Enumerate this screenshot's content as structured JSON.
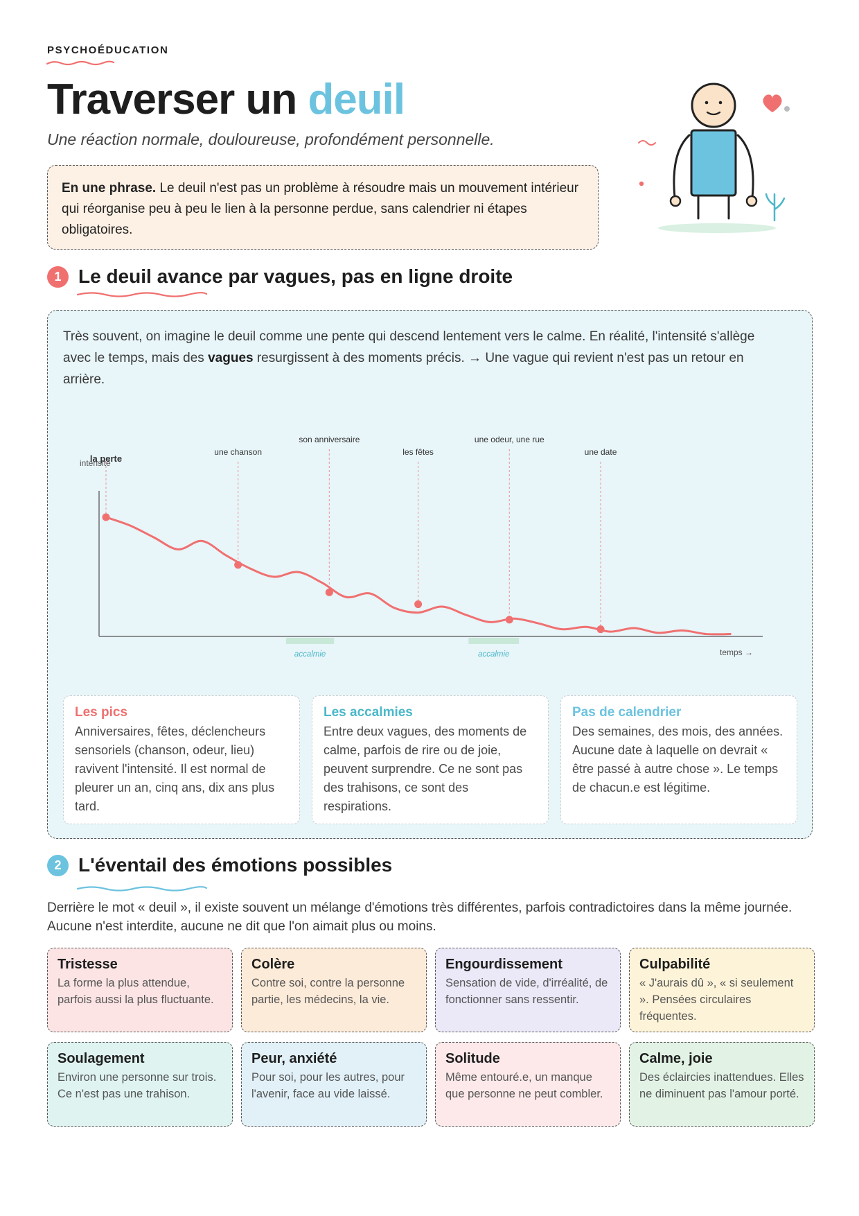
{
  "header": {
    "eyebrow": "PSYCHOÉDUCATION",
    "title_main": "Traverser un ",
    "title_accent": "deuil",
    "subtitle": "Une réaction normale, douloureuse, profondément personnelle.",
    "summary_lead": "En une phrase.",
    "summary_text": " Le deuil n'est pas un problème à résoudre mais un mouvement intérieur qui réorganise peu à peu le lien à la personne perdue, sans calendrier ni étapes obligatoires."
  },
  "colors": {
    "accent_blue": "#6cc3df",
    "accent_red": "#f07070",
    "teal_text": "#4bb8c9",
    "box_blue": "#e8f5f9",
    "summary_bg": "#fdf0e4"
  },
  "section1": {
    "number": "1",
    "title": "Le deuil avance par vagues, pas en ligne droite",
    "intro_a": "Très souvent, on imagine le deuil comme une pente qui descend lentement vers le calme. En réalité, l'intensité s'allège avec le temps, mais des ",
    "intro_bold": "vagues",
    "intro_b": " resurgissent à des moments précis. → Une vague qui revient n'est pas un retour en arrière.",
    "cards": [
      {
        "title": "Les pics",
        "text": "Anniversaires, fêtes, déclencheurs sensoriels (chanson, odeur, lieu) ravivent l'intensité. Il est normal de pleurer un an, cinq ans, dix ans plus tard.",
        "color": "#f07070"
      },
      {
        "title": "Les accalmies",
        "text": "Entre deux vagues, des moments de calme, parfois de rire ou de joie, peuvent surprendre. Ce ne sont pas des trahisons, ce sont des respirations.",
        "color": "#4bb8c9"
      },
      {
        "title": "Pas de calendrier",
        "text": "Des semaines, des mois, des années. Aucune date à laquelle on devrait « être passé à autre chose ». Le temps de chacun.e est légitime.",
        "color": "#6cc3df"
      }
    ]
  },
  "chart_data": {
    "type": "line",
    "ylabel": "intensité",
    "xlabel": "temps →",
    "x": [
      0,
      1,
      2,
      3,
      4,
      5,
      6,
      7,
      8,
      9,
      10,
      11,
      12,
      13,
      14,
      15,
      16,
      17,
      18,
      19,
      20,
      21,
      22,
      23,
      24,
      25,
      26
    ],
    "series": [
      {
        "values": [
          100,
          93,
          83,
          73,
          80,
          68,
          57,
          50,
          54,
          45,
          33,
          36,
          24,
          20,
          25,
          18,
          12,
          15,
          11,
          6,
          8,
          4,
          7,
          3,
          5,
          2,
          2
        ]
      }
    ],
    "events": [
      {
        "label": "la perte",
        "x": 0,
        "y": 100,
        "emphasis": true
      },
      {
        "label": "une chanson",
        "x": 5.5,
        "y": 60
      },
      {
        "label": "son anniversaire",
        "x": 9.3,
        "y": 37
      },
      {
        "label": "les fêtes",
        "x": 13,
        "y": 27
      },
      {
        "label": "une odeur, une rue",
        "x": 16.8,
        "y": 14
      },
      {
        "label": "une date",
        "x": 20.6,
        "y": 6
      }
    ],
    "calm_periods": [
      {
        "label": "accalmie",
        "from": 7.5,
        "to": 9.5
      },
      {
        "label": "accalmie",
        "from": 15.1,
        "to": 17.2
      }
    ],
    "ylim": [
      0,
      100
    ],
    "grid": false
  },
  "section2": {
    "number": "2",
    "title": "L'éventail des émotions possibles",
    "intro": "Derrière le mot « deuil », il existe souvent un mélange d'émotions très différentes, parfois contradictoires dans la même journée. Aucune n'est interdite, aucune ne dit que l'on aimait plus ou moins.",
    "emotions": [
      {
        "title": "Tristesse",
        "text": "La forme la plus attendue, parfois aussi la plus fluctuante.",
        "bg": "#fce4e4"
      },
      {
        "title": "Colère",
        "text": "Contre soi, contre la personne partie, les médecins, la vie.",
        "bg": "#fdebd9"
      },
      {
        "title": "Engourdissement",
        "text": "Sensation de vide, d'irréalité, de fonctionner sans ressentir.",
        "bg": "#ebe8f7"
      },
      {
        "title": "Culpabilité",
        "text": "« J'aurais dû », « si seulement ». Pensées circulaires fréquentes.",
        "bg": "#fdf3d8"
      },
      {
        "title": "Soulagement",
        "text": "Environ une personne sur trois. Ce n'est pas une trahison.",
        "bg": "#dff4f1"
      },
      {
        "title": "Peur, anxiété",
        "text": "Pour soi, pour les autres, pour l'avenir, face au vide laissé.",
        "bg": "#e2f1f8"
      },
      {
        "title": "Solitude",
        "text": "Même entouré.e, un manque que personne ne peut combler.",
        "bg": "#fde9ea"
      },
      {
        "title": "Calme, joie",
        "text": "Des éclaircies inattendues. Elles ne diminuent pas l'amour porté.",
        "bg": "#e2f3e6"
      }
    ]
  }
}
